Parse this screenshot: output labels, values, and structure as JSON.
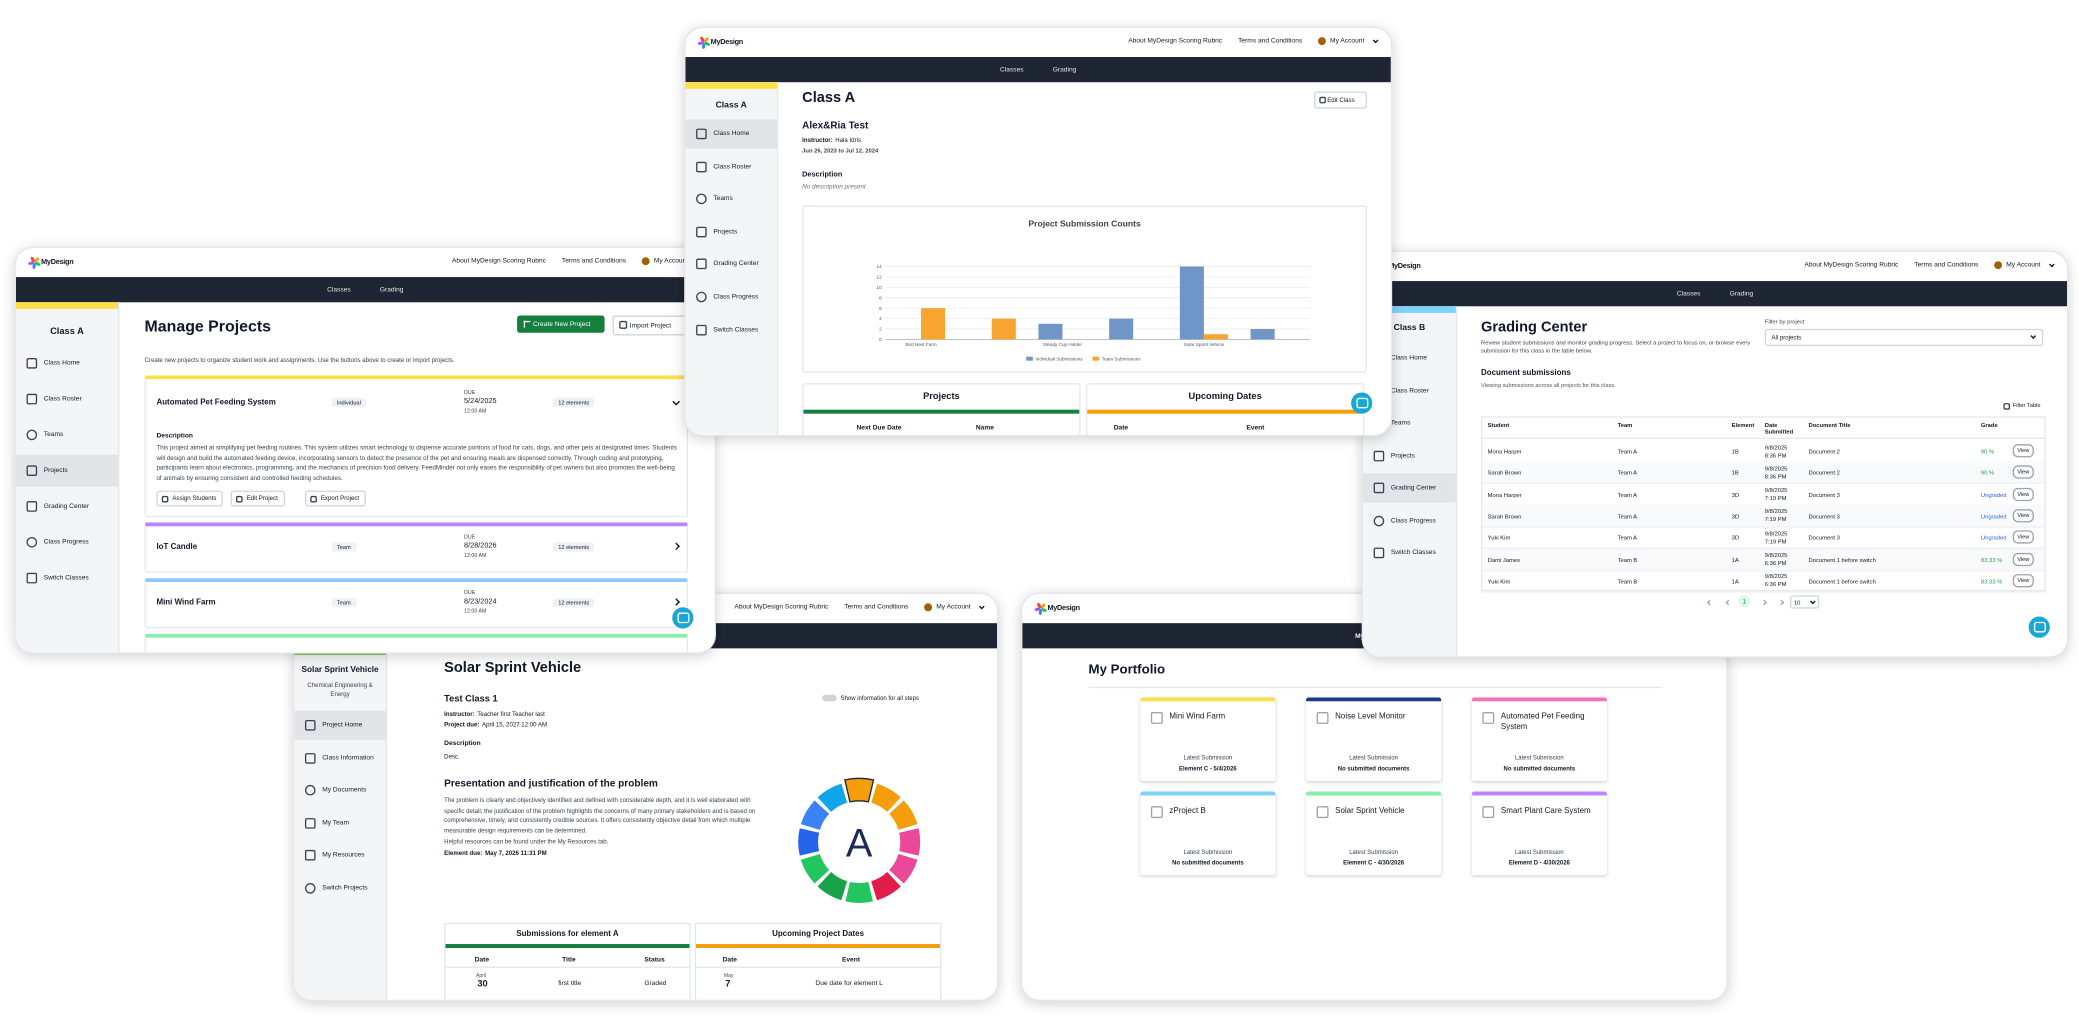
{
  "nav": {
    "brand": "MyDesign",
    "rubric": "About MyDesign Scoring Rubric",
    "terms": "Terms and Conditions",
    "account": "My Account",
    "classes": "Classes",
    "grading": "Grading",
    "portfolio": "My Portfolio"
  },
  "class_menu": [
    "Class Home",
    "Class Roster",
    "Teams",
    "Projects",
    "Grading Center",
    "Class Progress",
    "Switch Classes"
  ],
  "manage_projects": {
    "class_name": "Class A",
    "title": "Manage Projects",
    "create": "Create New Project",
    "import": "Import Project",
    "intro": "Create new projects to organize student work and assignments. Use the buttons above to create or import projects.",
    "due_label": "DUE",
    "description_label": "Description",
    "description": "This project aimed at simplifying pet feeding routines. This system utilizes smart technology to dispense accurate portions of food for cats, dogs, and other pets at designated times. Students will design and build the automated feeding device, incorporating sensors to detect the presence of the pet and ensuring meals are dispensed correctly. Through coding and prototyping, participants learn about electronics, programming, and the mechanics of precision food delivery. FeedMinder not only eases the responsibility of pet owners but also promotes the well-being of animals by ensuring consistent and controlled feeding schedules.",
    "actions": [
      "Assign Students",
      "Edit Project",
      "Export Project"
    ],
    "projects": [
      {
        "name": "Automated Pet Feeding System",
        "type": "Individual",
        "date": "5/24/2025",
        "time": "12:00 AM",
        "elements": "12 elements",
        "color": "#fde047"
      },
      {
        "name": "IoT Candle",
        "type": "Team",
        "date": "8/28/2026",
        "time": "12:00 AM",
        "elements": "12 elements",
        "color": "#c084fc"
      },
      {
        "name": "Mini Wind Farm",
        "type": "Team",
        "date": "8/23/2024",
        "time": "12:00 AM",
        "elements": "12 elements",
        "color": "#93c5fd"
      }
    ]
  },
  "class_home": {
    "class_name": "Class A",
    "title": "Class A",
    "edit": "Edit Class",
    "project": "Alex&Ria Test",
    "instructor_label": "Instructor:",
    "instructor": "Hala Idris",
    "dates": "Jun 26, 2023 to Jul 12, 2024",
    "description_label": "Description",
    "description": "No description present",
    "chart": {
      "type": "bar",
      "title": "Project Submission Counts",
      "categories": [
        "Bird Nest Farm",
        null,
        "Steady Cup Holder",
        null,
        "Solar Sprint Vehicle",
        null
      ],
      "series": [
        {
          "name": "Individual Submissions",
          "color": "#6f96c6",
          "values": [
            0,
            0,
            3,
            4,
            14,
            2
          ]
        },
        {
          "name": "Team Submissions",
          "color": "#f7a431",
          "values": [
            6,
            4,
            0,
            0,
            1,
            0
          ]
        }
      ],
      "ylim": [
        0,
        14
      ],
      "yticks": [
        0,
        2,
        4,
        6,
        8,
        10,
        12,
        14
      ],
      "grid": true
    },
    "projects_title": "Projects",
    "upcoming_title": "Upcoming Dates",
    "projects_columns": [
      "Next Due Date",
      "Name"
    ],
    "upcoming_columns": [
      "Date",
      "Event"
    ]
  },
  "grading_center": {
    "class_name": "Class B",
    "title": "Grading Center",
    "intro": "Review student submissions and monitor grading progress. Select a project to focus on, or browse every submission for this class in the table below.",
    "filter_label": "Filter by project",
    "filter_value": "All projects",
    "doc_title": "Document submissions",
    "doc_subtitle": "Viewing submissions across all projects for this class.",
    "filter_table": "Filter Table",
    "columns": [
      "Student",
      "Team",
      "Element",
      "Date Submitted",
      "Document Title",
      "Grade"
    ],
    "view": "View",
    "page": "1",
    "page_size": "10",
    "rows": [
      {
        "student": "Mona Harper",
        "team": "Team A",
        "element": "1B",
        "date": "9/8/2025",
        "time": "8:36 PM",
        "document": "Document 2",
        "grade": "90 %",
        "grade_color": "#16a34a"
      },
      {
        "student": "Sarah Brown",
        "team": "Team A",
        "element": "1B",
        "date": "9/8/2025",
        "time": "8:36 PM",
        "document": "Document 2",
        "grade": "90 %",
        "grade_color": "#16a34a"
      },
      {
        "student": "Mona Harper",
        "team": "Team A",
        "element": "3D",
        "date": "9/8/2025",
        "time": "7:19 PM",
        "document": "Document 3",
        "grade": "Ungraded",
        "grade_color": "#2563eb"
      },
      {
        "student": "Sarah Brown",
        "team": "Team A",
        "element": "3D",
        "date": "9/8/2025",
        "time": "7:19 PM",
        "document": "Document 3",
        "grade": "Ungraded",
        "grade_color": "#2563eb"
      },
      {
        "student": "Yuki Kim",
        "team": "Team A",
        "element": "3D",
        "date": "9/8/2025",
        "time": "7:19 PM",
        "document": "Document 3",
        "grade": "Ungraded",
        "grade_color": "#2563eb"
      },
      {
        "student": "Dami James",
        "team": "Team B",
        "element": "1A",
        "date": "9/8/2025",
        "time": "6:36 PM",
        "document": "Document 1 before switch",
        "grade": "83.33 %",
        "grade_color": "#16a34a"
      },
      {
        "student": "Yuki Kim",
        "team": "Team B",
        "element": "1A",
        "date": "9/8/2025",
        "time": "6:36 PM",
        "document": "Document 1 before switch",
        "grade": "83.33 %",
        "grade_color": "#16a34a"
      }
    ]
  },
  "project_home": {
    "project": "Solar Sprint Vehicle",
    "category": "Chemical Engineering & Energy",
    "menu": [
      "Project Home",
      "Class Information",
      "My Documents",
      "My Team",
      "My Resources",
      "Switch Projects"
    ],
    "title": "Solar Sprint Vehicle",
    "class_name": "Test Class 1",
    "toggle": "Show information for all steps",
    "instructor_label": "Instructor:",
    "instructor": "Teacher first Teacher last",
    "due_label": "Project due:",
    "due": "April 15, 2027 12:00 AM",
    "description_label": "Description",
    "description": "Desc.",
    "element_title": "Presentation and justification of the problem",
    "element_text": "The problem is clearly and objectively identified and defined with considerable depth, and it is well elaborated with specific detail; the justification of the problem highlights the concerns of many primary stakeholders and is based on comprehensive, timely, and consistently credible sources. It offers consistently objective detail from which multiple measurable design requirements can be determined.",
    "resources": "Helpful resources can be found under the My Resources tab.",
    "element_due_label": "Element due:",
    "element_due": "May 7, 2026 11:31 PM",
    "element_letter": "A",
    "submissions_title": "Submissions for element A",
    "submissions_columns": [
      "Date",
      "Title",
      "Status"
    ],
    "submissions": [
      {
        "month": "April",
        "day": "30",
        "title": "first title",
        "status": "Graded"
      }
    ],
    "upcoming_title": "Upcoming Project Dates",
    "upcoming_columns": [
      "Date",
      "Event"
    ],
    "upcoming": [
      {
        "month": "May",
        "day": "7",
        "event": "Due date for element L"
      }
    ]
  },
  "portfolio": {
    "title": "My Portfolio",
    "latest": "Latest Submission",
    "cards": [
      {
        "name": "Mini Wind Farm",
        "color": "#fde047",
        "status": "Element C - 5/4/2026"
      },
      {
        "name": "Noise Level Monitor",
        "color": "#1e3a8a",
        "status": "No submitted documents"
      },
      {
        "name": "Automated Pet Feeding System",
        "color": "#f472b6",
        "status": "No submitted documents"
      },
      {
        "name": "zProject B",
        "color": "#7dd3fc",
        "status": "No submitted documents"
      },
      {
        "name": "Solar Sprint Vehicle",
        "color": "#86efac",
        "status": "Element C - 4/30/2026"
      },
      {
        "name": "Smart Plant Care System",
        "color": "#c084fc",
        "status": "Element D - 4/30/2026"
      }
    ]
  }
}
